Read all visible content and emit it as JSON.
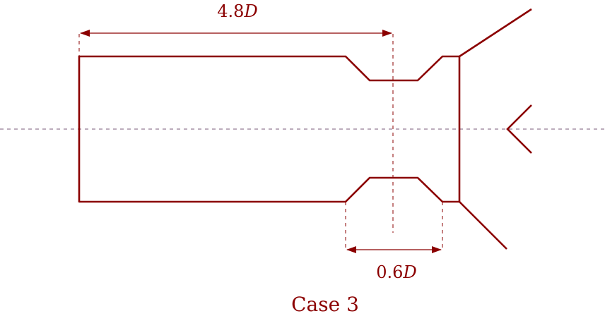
{
  "diagram": {
    "caption": "Case 3",
    "dimension_length": {
      "number": "4.8",
      "symbol": "D"
    },
    "dimension_throat": {
      "number": "0.6",
      "symbol": "D"
    },
    "stroke_color": "#8B0000",
    "axis_color": "#7A5A7A"
  }
}
